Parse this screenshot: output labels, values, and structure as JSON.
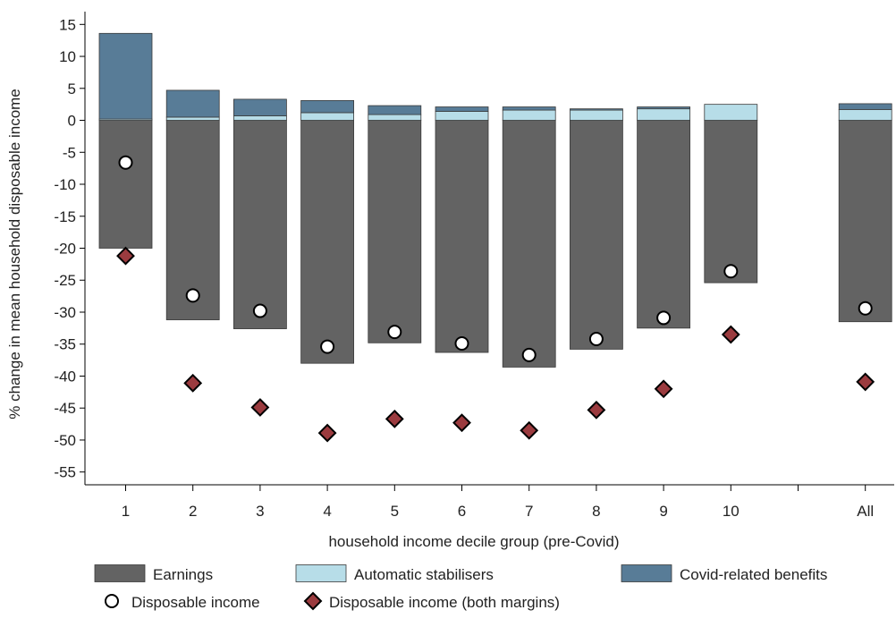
{
  "chart_data": {
    "type": "bar",
    "xlabel": "household income decile group (pre-Covid)",
    "ylabel": "% change in mean household disposable income",
    "ylim": [
      -57,
      17
    ],
    "yticks": [
      15,
      10,
      5,
      0,
      -5,
      -10,
      -15,
      -20,
      -25,
      -30,
      -35,
      -40,
      -45,
      -50,
      -55
    ],
    "grid": false,
    "stacked": true,
    "legend_position": "bottom",
    "categories": [
      "1",
      "2",
      "3",
      "4",
      "5",
      "6",
      "7",
      "8",
      "9",
      "10",
      "All"
    ],
    "series": [
      {
        "name": "Earnings",
        "kind": "bar",
        "color": "#636363",
        "values": [
          -20.0,
          -31.2,
          -32.6,
          -38.0,
          -34.8,
          -36.3,
          -38.6,
          -35.8,
          -32.5,
          -25.4,
          -31.5
        ]
      },
      {
        "name": "Automatic stabilisers",
        "kind": "bar",
        "color": "#b7dde8",
        "values": [
          0.2,
          0.5,
          0.7,
          1.2,
          0.9,
          1.4,
          1.6,
          1.6,
          1.8,
          2.5,
          1.7
        ]
      },
      {
        "name": "Covid-related benefits",
        "kind": "bar",
        "color": "#587c97",
        "values": [
          13.4,
          4.2,
          2.6,
          1.9,
          1.4,
          0.7,
          0.5,
          0.2,
          0.3,
          0.0,
          0.9
        ]
      },
      {
        "name": "Disposable income",
        "kind": "marker",
        "marker": "circle",
        "color": "#ffffff",
        "values": [
          -6.6,
          -27.4,
          -29.8,
          -35.4,
          -33.1,
          -34.9,
          -36.7,
          -34.2,
          -30.9,
          -23.6,
          -29.4
        ]
      },
      {
        "name": "Disposable income (both margins)",
        "kind": "marker",
        "marker": "diamond",
        "color": "#9b3b3f",
        "values": [
          -21.2,
          -41.1,
          -44.9,
          -48.9,
          -46.7,
          -47.3,
          -48.5,
          -45.3,
          -42.0,
          -33.5,
          -40.9
        ]
      }
    ]
  }
}
